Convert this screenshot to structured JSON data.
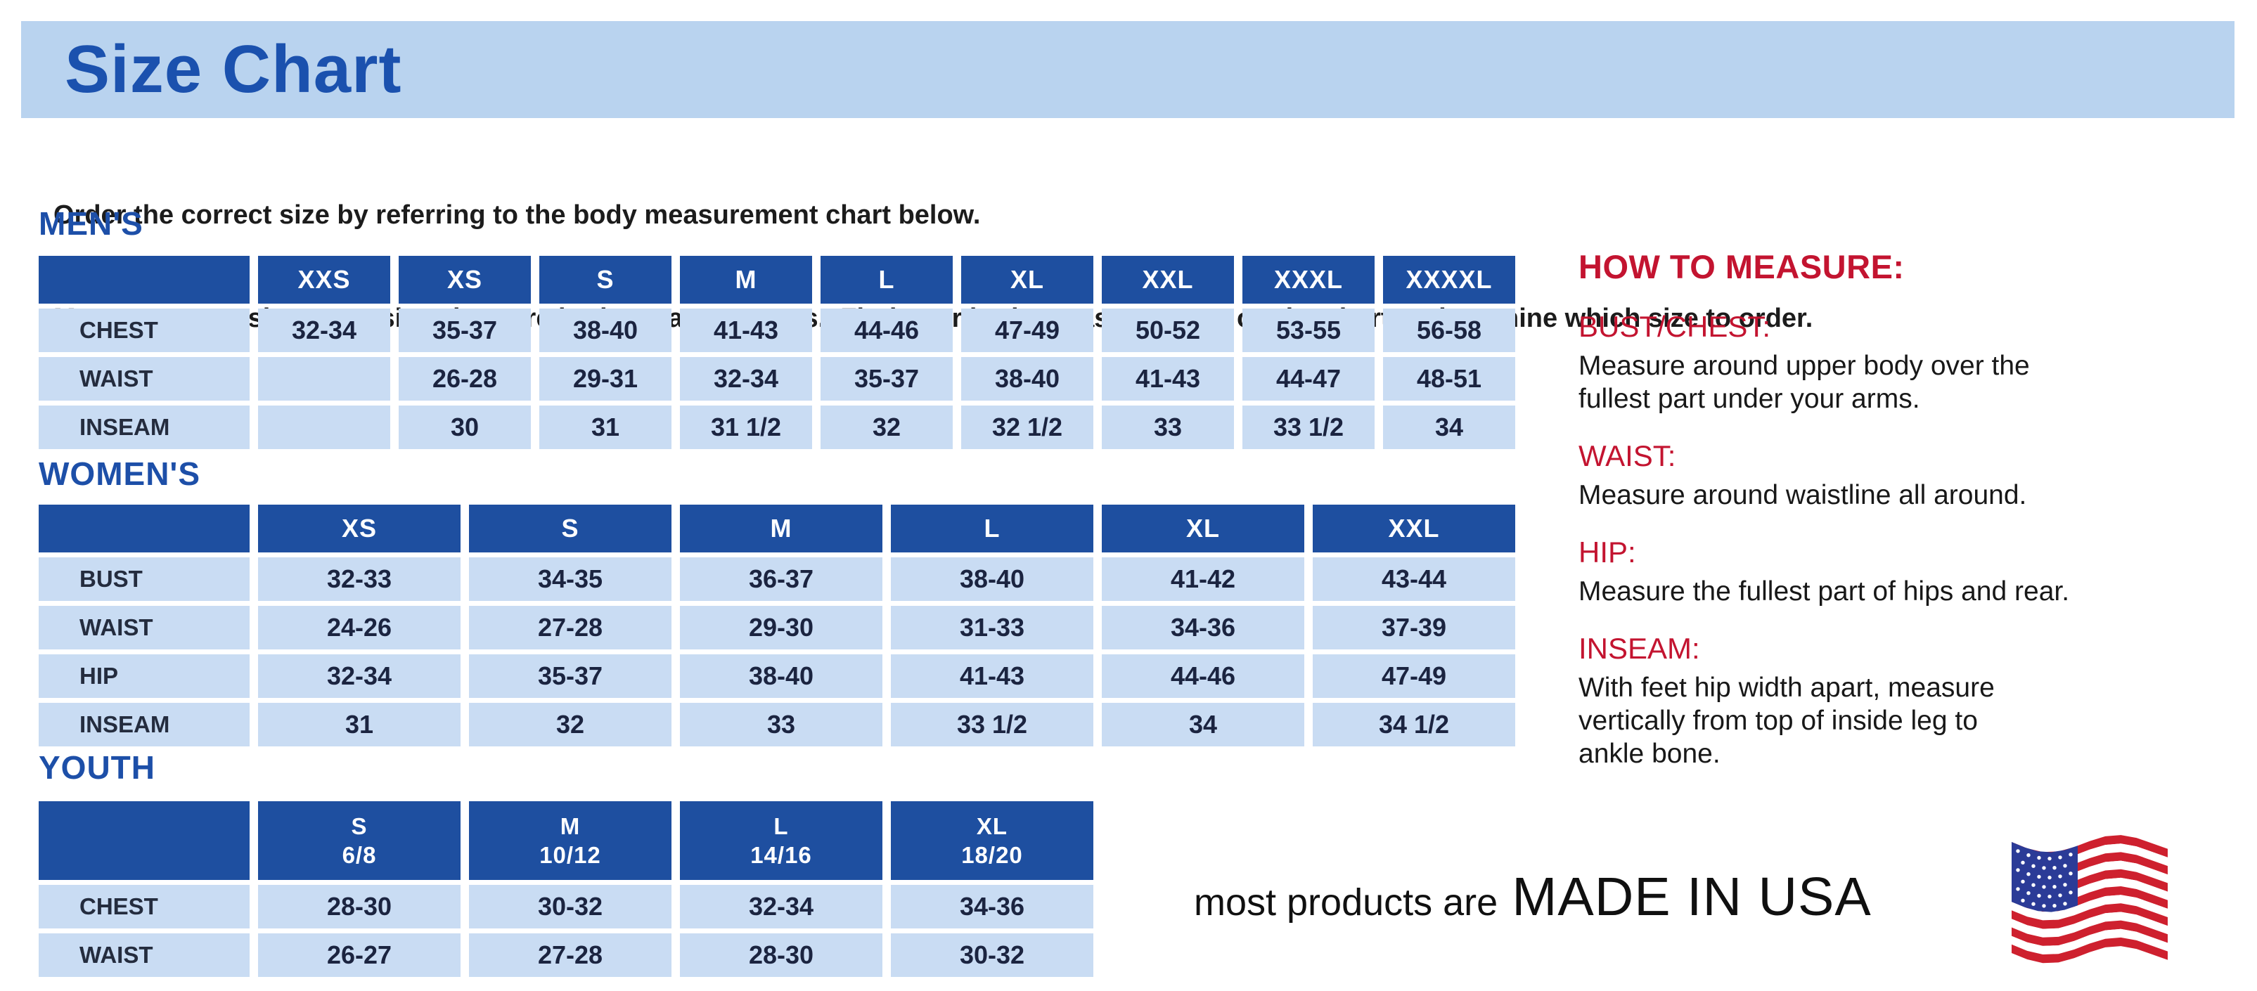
{
  "page": {
    "title": "Size Chart",
    "intro_line1": "Order the correct size by referring to the body measurement chart below.",
    "intro_line2": "Measurements shown on size chart are body measurements.  Find your body measurements on the chart to determine which size to order."
  },
  "colors": {
    "banner_bg": "#b9d3ef",
    "title_blue": "#1b51ae",
    "heading_blue": "#1d4fa8",
    "header_cell_blue": "#1e4fa0",
    "cell_bg": "#c9dcf3",
    "value_navy": "#1b2440",
    "label_dark": "#242c3e",
    "red": "#c31430",
    "text_dark": "#1c1c1c",
    "flag_red": "#ce202e",
    "flag_blue": "#2b3b97"
  },
  "tables": [
    {
      "id": "mens",
      "heading": "MEN'S",
      "columns": [
        "XXS",
        "XS",
        "S",
        "M",
        "L",
        "XL",
        "XXL",
        "XXXL",
        "XXXXL"
      ],
      "rows": [
        {
          "label": "CHEST",
          "values": [
            "32-34",
            "35-37",
            "38-40",
            "41-43",
            "44-46",
            "47-49",
            "50-52",
            "53-55",
            "56-58"
          ]
        },
        {
          "label": "WAIST",
          "values": [
            "",
            "26-28",
            "29-31",
            "32-34",
            "35-37",
            "38-40",
            "41-43",
            "44-47",
            "48-51"
          ]
        },
        {
          "label": "INSEAM",
          "values": [
            "",
            "30",
            "31",
            "31 1/2",
            "32",
            "32 1/2",
            "33",
            "33 1/2",
            "34"
          ]
        }
      ]
    },
    {
      "id": "womens",
      "heading": "WOMEN'S",
      "columns": [
        "XS",
        "S",
        "M",
        "L",
        "XL",
        "XXL"
      ],
      "rows": [
        {
          "label": "BUST",
          "values": [
            "32-33",
            "34-35",
            "36-37",
            "38-40",
            "41-42",
            "43-44"
          ]
        },
        {
          "label": "WAIST",
          "values": [
            "24-26",
            "27-28",
            "29-30",
            "31-33",
            "34-36",
            "37-39"
          ]
        },
        {
          "label": "HIP",
          "values": [
            "32-34",
            "35-37",
            "38-40",
            "41-43",
            "44-46",
            "47-49"
          ]
        },
        {
          "label": "INSEAM",
          "values": [
            "31",
            "32",
            "33",
            "33 1/2",
            "34",
            "34 1/2"
          ]
        }
      ]
    },
    {
      "id": "youth",
      "heading": "YOUTH",
      "columns": [
        {
          "size": "S",
          "group": "6/8"
        },
        {
          "size": "M",
          "group": "10/12"
        },
        {
          "size": "L",
          "group": "14/16"
        },
        {
          "size": "XL",
          "group": "18/20"
        }
      ],
      "rows": [
        {
          "label": "CHEST",
          "values": [
            "28-30",
            "30-32",
            "32-34",
            "34-36"
          ]
        },
        {
          "label": "WAIST",
          "values": [
            "26-27",
            "27-28",
            "28-30",
            "30-32"
          ]
        }
      ]
    }
  ],
  "how_to_measure": {
    "heading": "HOW TO MEASURE:",
    "sections": [
      {
        "label": "BUST/CHEST:",
        "lines": [
          "Measure around upper body over the",
          "fullest part under your arms."
        ]
      },
      {
        "label": "WAIST:",
        "lines": [
          "Measure around waistline all around."
        ]
      },
      {
        "label": "HIP:",
        "lines": [
          "Measure the fullest part of hips and rear."
        ]
      },
      {
        "label": "INSEAM:",
        "lines": [
          "With feet hip width apart, measure",
          "vertically from top of inside leg to",
          "ankle bone."
        ]
      }
    ]
  },
  "footer": {
    "prefix": "most products are",
    "emphasis": "MADE IN USA",
    "flag_icon": "usa-flag-icon"
  }
}
